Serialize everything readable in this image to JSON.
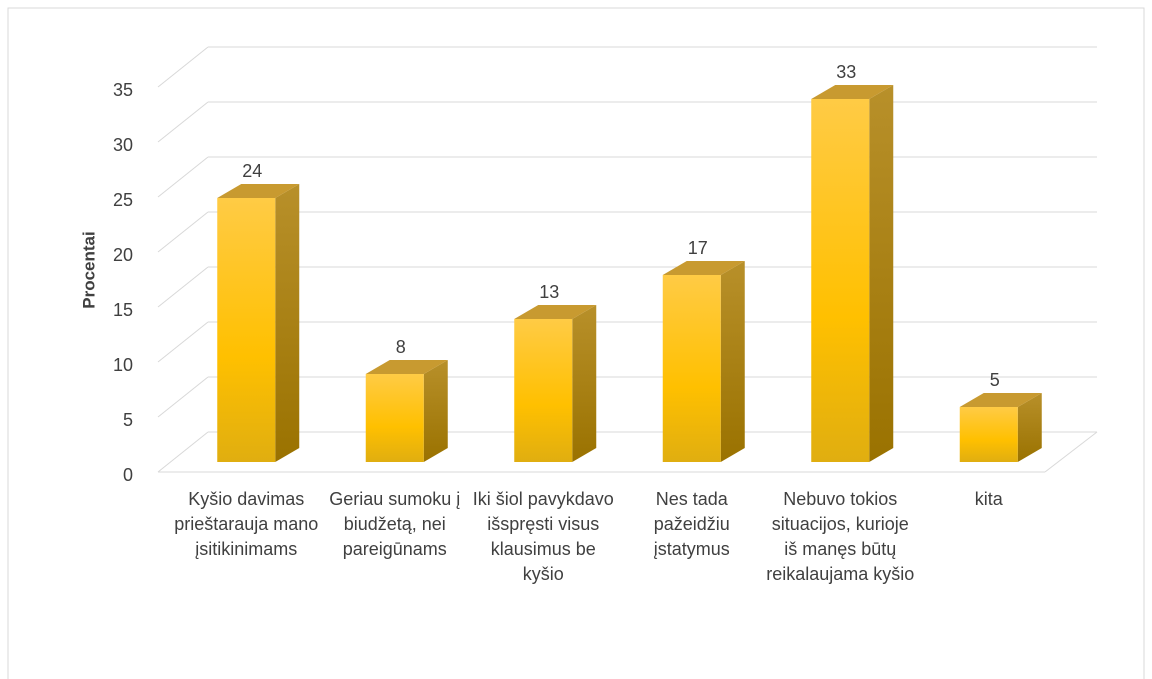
{
  "chart_data": {
    "type": "bar",
    "y_label": "Procentai",
    "categories": [
      "Kyšio davimas prieštarauja mano įsitikinimams",
      "Geriau sumoku į biudžetą, nei pareigūnams",
      "Iki šiol pavykdavo išspręsti visus klausimus be kyšio",
      "Nes tada pažeidžiu įstatymus",
      "Nebuvo tokios situacijos, kurioje iš manęs būtų reikalaujama kyšio",
      "kita"
    ],
    "values": [
      24,
      8,
      13,
      17,
      33,
      5
    ],
    "color": "#ffc000",
    "ylim": [
      0,
      35
    ],
    "yticks": [
      0,
      5,
      10,
      15,
      20,
      25,
      30,
      35
    ],
    "grid": true
  }
}
